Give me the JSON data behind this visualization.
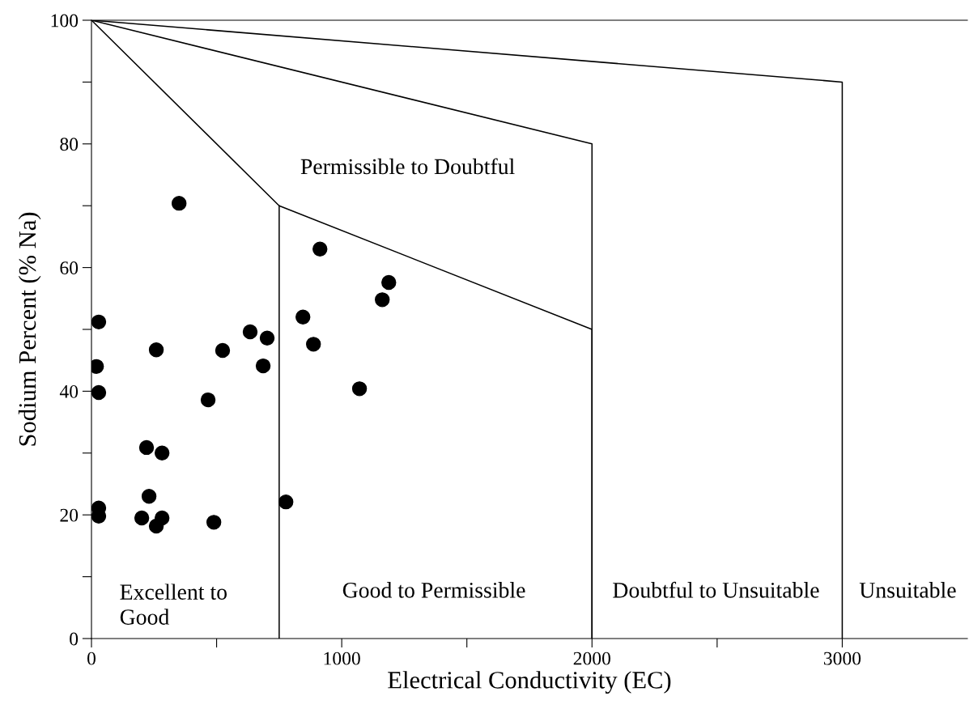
{
  "chart_data": {
    "type": "scatter",
    "xlabel": "Electrical Conductivity (EC)",
    "ylabel": "Sodium Percent (% Na)",
    "xlim": [
      0,
      3500
    ],
    "ylim": [
      0,
      100
    ],
    "xticks": [
      0,
      {
        "value": 500,
        "label": null
      },
      1000,
      {
        "value": 1500,
        "label": null
      },
      2000,
      {
        "value": 2500,
        "label": null
      },
      3000
    ],
    "yticks": [
      0,
      {
        "value": 10,
        "label": null
      },
      20,
      {
        "value": 30,
        "label": null
      },
      40,
      {
        "value": 50,
        "label": null
      },
      60,
      {
        "value": 70,
        "label": null
      },
      80,
      {
        "value": 90,
        "label": null
      },
      100
    ],
    "grid": false,
    "legend": false,
    "marker": "circle",
    "series": [
      {
        "color": "#000000",
        "x": [
          29,
          20,
          29,
          29,
          29,
          350,
          259,
          220,
          282,
          230,
          201,
          282,
          259,
          466,
          489,
          524,
          634,
          702,
          686,
          777,
          845,
          913,
          887,
          1071,
          1162,
          1188
        ],
        "values": [
          51.2,
          44.0,
          39.8,
          21.1,
          19.8,
          70.4,
          46.7,
          30.9,
          30.0,
          23.0,
          19.5,
          19.5,
          18.2,
          38.6,
          18.8,
          46.6,
          49.6,
          48.6,
          44.1,
          22.1,
          52.0,
          63.0,
          47.6,
          40.4,
          54.8,
          57.6
        ]
      },
      {
        "type": "line",
        "color": "#000000",
        "line_style": "solid",
        "marker": "none",
        "x": [
          0,
          750,
          2000,
          2000
        ],
        "values": [
          100,
          70,
          50,
          0
        ]
      },
      {
        "type": "line",
        "color": "#000000",
        "line_style": "solid",
        "marker": "none",
        "x": [
          0,
          2000,
          2000
        ],
        "values": [
          100,
          80,
          0
        ]
      },
      {
        "type": "line",
        "color": "#000000",
        "line_style": "solid",
        "marker": "none",
        "x": [
          0,
          3000,
          3000
        ],
        "values": [
          100,
          90,
          0
        ]
      },
      {
        "type": "line",
        "color": "#000000",
        "line_style": "solid",
        "marker": "none",
        "x": [
          750,
          750
        ],
        "values": [
          70,
          0
        ]
      }
    ],
    "annotations": [
      "Permissible to Doubtful",
      "Excellent to\nGood",
      "Good to Permissible",
      "Doubtful to Unsuitable",
      "Unsuitable"
    ]
  }
}
